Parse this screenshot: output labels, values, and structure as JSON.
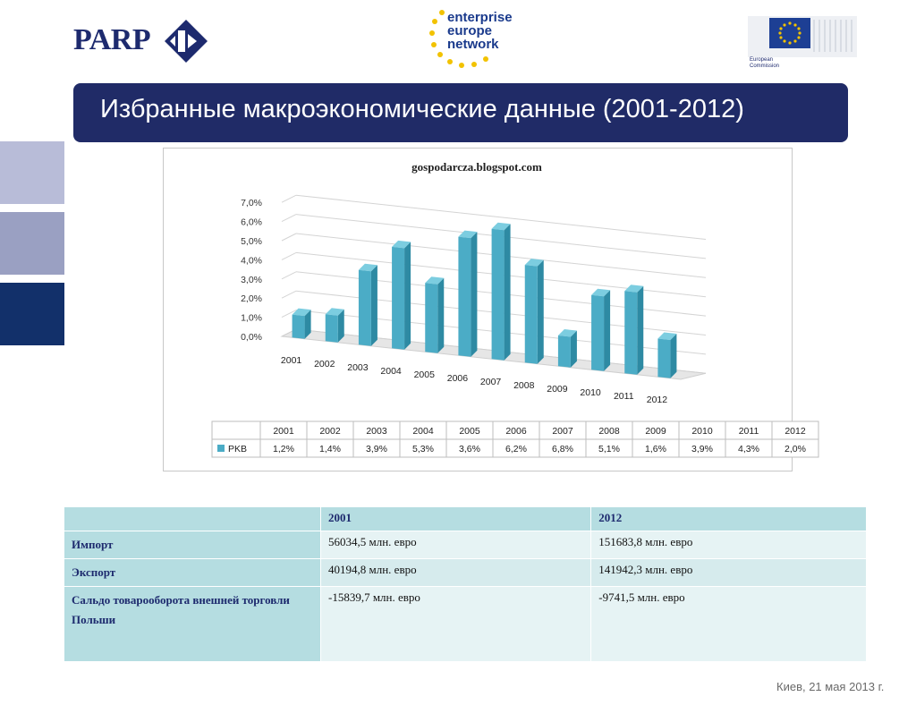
{
  "header": {
    "parp_logo_text": "PARP",
    "een_line1": "enterprise",
    "een_line2": "europe",
    "een_line3": "network",
    "ec_line1": "European",
    "ec_line2": "Commission"
  },
  "title": "Избранные макроэкономические данные (2001-2012)",
  "chart_data": {
    "type": "bar",
    "title": "gospodarcza.blogspot.com",
    "categories": [
      "2001",
      "2002",
      "2003",
      "2004",
      "2005",
      "2006",
      "2007",
      "2008",
      "2009",
      "2010",
      "2011",
      "2012"
    ],
    "series": [
      {
        "name": "PKB",
        "values": [
          1.2,
          1.4,
          3.9,
          5.3,
          3.6,
          6.2,
          6.8,
          5.1,
          1.6,
          3.9,
          4.3,
          2.0
        ],
        "labels": [
          "1,2%",
          "1,4%",
          "3,9%",
          "5,3%",
          "3,6%",
          "6,2%",
          "6,8%",
          "5,1%",
          "1,6%",
          "3,9%",
          "4,3%",
          "2,0%"
        ]
      }
    ],
    "yticks": [
      "0,0%",
      "1,0%",
      "2,0%",
      "3,0%",
      "4,0%",
      "5,0%",
      "6,0%",
      "7,0%"
    ],
    "ylim": [
      0,
      7
    ],
    "xlabel": "",
    "ylabel": "",
    "grid": true,
    "legend": "bottom data table",
    "bar_color": "#4bacc6"
  },
  "table": {
    "headers": [
      "",
      "2001",
      "2012"
    ],
    "rows": [
      {
        "label": "Импорт",
        "v2001": "56034,5 млн. евро",
        "v2012": "151683,8 млн. евро"
      },
      {
        "label": "Экспорт",
        "v2001": "40194,8 млн. евро",
        "v2012": "141942,3 млн. евро"
      },
      {
        "label": "Сальдо товарооборота внешней торговли Польши",
        "v2001": "-15839,7 млн. евро",
        "v2012": "-9741,5 млн. евро"
      }
    ]
  },
  "footer": "Киев, 21 мая 2013 г.",
  "colors": {
    "title_bar": "#202b67",
    "table_header": "#b5dde1",
    "bars": "#4bacc6"
  }
}
